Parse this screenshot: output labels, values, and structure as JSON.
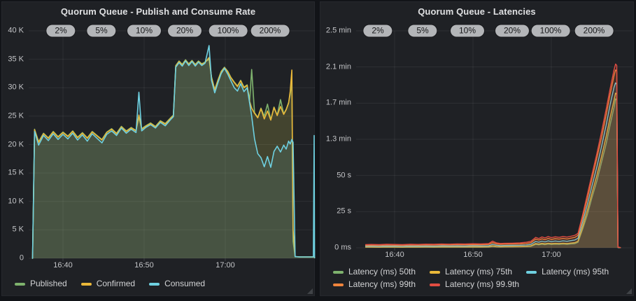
{
  "dashboard": {
    "background_color": "#121418",
    "panel_background_color": "#1f2125",
    "annotation_pill_bg": "#b3b5b8",
    "annotation_pill_text": "#17181a"
  },
  "panels": [
    {
      "title": "Quorum Queue - Publish and Consume Rate",
      "annotations": {
        "labels": [
          "2%",
          "5%",
          "10%",
          "20%",
          "100%",
          "200%"
        ]
      },
      "chart_data": {
        "type": "area",
        "title": "Quorum Queue - Publish and Consume Rate",
        "x_unit": "minutes after 16:36",
        "y_unit": "k msg/s",
        "ylim": [
          0,
          40
        ],
        "grid": true,
        "legend_position": "bottom-left",
        "x_ticks": [
          {
            "t": 4,
            "label": "16:40"
          },
          {
            "t": 14,
            "label": "16:50"
          },
          {
            "t": 24,
            "label": "17:00"
          }
        ],
        "y_ticks": [
          {
            "v": 0,
            "label": "0"
          },
          {
            "v": 5,
            "label": "5 K"
          },
          {
            "v": 10,
            "label": "10 K"
          },
          {
            "v": 15,
            "label": "15 K"
          },
          {
            "v": 20,
            "label": "20 K"
          },
          {
            "v": 25,
            "label": "25 K"
          },
          {
            "v": 30,
            "label": "30 K"
          },
          {
            "v": 35,
            "label": "35 K"
          },
          {
            "v": 40,
            "label": "40 K"
          }
        ],
        "x": [
          0.25,
          0.5,
          1.0,
          1.6,
          2.2,
          2.8,
          3.4,
          4.0,
          4.6,
          5.2,
          5.8,
          6.4,
          7.0,
          7.6,
          8.2,
          8.8,
          9.4,
          10.0,
          10.6,
          11.2,
          11.8,
          12.4,
          13.0,
          13.35,
          13.7,
          14.2,
          14.8,
          15.4,
          16.0,
          16.6,
          17.2,
          17.6,
          17.9,
          18.3,
          18.7,
          19.1,
          19.5,
          19.9,
          20.3,
          20.7,
          21.1,
          21.5,
          22.0,
          22.3,
          22.7,
          23.1,
          23.5,
          23.9,
          24.3,
          24.7,
          25.1,
          25.5,
          25.9,
          26.3,
          26.7,
          27.0,
          27.25,
          27.6,
          28.0,
          28.4,
          28.8,
          29.2,
          29.6,
          30.0,
          30.4,
          30.8,
          31.2,
          31.5,
          31.8,
          32.0,
          32.2,
          32.35,
          32.6,
          33.2,
          33.8,
          34.4,
          34.85,
          34.95,
          35.0
        ],
        "series": [
          {
            "name": "Published",
            "color": "#7EB26D",
            "values": [
              0,
              22.7,
              20.5,
              22.0,
              21.2,
              22.3,
              21.4,
              22.2,
              21.5,
              22.4,
              21.3,
              22.1,
              21.2,
              22.3,
              21.6,
              20.9,
              22.2,
              22.8,
              22.0,
              23.2,
              22.4,
              23.0,
              22.5,
              24.8,
              22.8,
              23.3,
              23.8,
              23.2,
              24.2,
              23.7,
              24.6,
              25.2,
              33.9,
              34.7,
              34.1,
              34.9,
              34.2,
              34.8,
              34.1,
              34.7,
              34.2,
              34.5,
              35.0,
              31.9,
              29.7,
              31.4,
              32.9,
              33.6,
              32.9,
              31.8,
              31.0,
              30.3,
              31.3,
              30.1,
              30.5,
              27.7,
              33.2,
              25.6,
              24.8,
              26.4,
              25.0,
              27.1,
              24.4,
              26.6,
              25.2,
              27.9,
              25.4,
              26.2,
              27.4,
              28.8,
              31.2,
              3.0,
              0.3,
              0.25,
              0.25,
              0.25,
              0.25,
              0.3,
              0.1
            ]
          },
          {
            "name": "Confirmed",
            "color": "#EAB839",
            "values": [
              0,
              22.6,
              20.4,
              21.9,
              21.1,
              22.2,
              21.3,
              22.1,
              21.4,
              22.3,
              21.2,
              22.0,
              21.1,
              22.2,
              21.5,
              20.8,
              22.1,
              22.7,
              21.9,
              23.1,
              22.3,
              22.9,
              22.4,
              25.2,
              22.7,
              23.2,
              23.7,
              23.1,
              24.1,
              23.6,
              24.5,
              25.1,
              33.8,
              34.6,
              34.0,
              34.8,
              34.1,
              34.7,
              34.0,
              34.6,
              34.1,
              34.4,
              35.3,
              31.8,
              29.6,
              31.3,
              32.8,
              33.5,
              32.8,
              31.7,
              30.9,
              30.2,
              31.2,
              30.0,
              30.4,
              27.6,
              26.4,
              25.5,
              24.7,
              26.3,
              24.5,
              25.9,
              24.3,
              26.5,
              25.1,
              26.7,
              25.3,
              26.1,
              27.3,
              29.4,
              33.1,
              5.0,
              0.3,
              0.25,
              0.25,
              0.25,
              0.25,
              0.3,
              0.1
            ]
          },
          {
            "name": "Consumed",
            "color": "#6ED0E0",
            "values": [
              0,
              22.3,
              19.9,
              21.6,
              20.7,
              21.9,
              20.9,
              21.8,
              21.0,
              22.0,
              20.8,
              21.7,
              20.6,
              21.9,
              21.1,
              20.3,
              21.8,
              22.4,
              21.6,
              22.9,
              22.0,
              22.7,
              22.1,
              29.2,
              22.4,
              23.0,
              23.5,
              22.9,
              23.9,
              23.3,
              24.3,
              24.9,
              33.6,
              34.4,
              33.8,
              34.7,
              33.9,
              34.6,
              33.8,
              34.5,
              33.9,
              34.3,
              37.4,
              31.3,
              29.1,
              30.9,
              32.5,
              33.4,
              32.4,
              31.2,
              30.0,
              29.4,
              30.7,
              29.3,
              30.0,
              27.3,
              25.0,
              21.0,
              18.4,
              17.7,
              16.1,
              17.9,
              16.0,
              18.8,
              19.7,
              18.7,
              19.9,
              19.2,
              20.6,
              20.1,
              20.9,
              20.4,
              0.3,
              0.25,
              0.25,
              0.25,
              0.25,
              21.6,
              0.1
            ]
          }
        ]
      }
    },
    {
      "title": "Quorum Queue - Latencies",
      "annotations": {
        "labels": [
          "2%",
          "5%",
          "10%",
          "20%",
          "100%",
          "200%"
        ]
      },
      "chart_data": {
        "type": "area",
        "title": "Quorum Queue - Latencies",
        "x_unit": "minutes after 16:36",
        "y_unit": "seconds",
        "ylim": [
          0,
          150
        ],
        "grid": true,
        "legend_position": "bottom-left",
        "x_ticks": [
          {
            "t": 4,
            "label": "16:40"
          },
          {
            "t": 14,
            "label": "16:50"
          },
          {
            "t": 24,
            "label": "17:00"
          }
        ],
        "y_ticks": [
          {
            "v": 0,
            "label": "0 ms"
          },
          {
            "v": 25,
            "label": "25 s"
          },
          {
            "v": 50,
            "label": "50 s"
          },
          {
            "v": 75,
            "label": "1.3 min"
          },
          {
            "v": 100,
            "label": "1.7 min"
          },
          {
            "v": 125,
            "label": "2.1 min"
          },
          {
            "v": 150,
            "label": "2.5 min"
          }
        ],
        "x": [
          0.3,
          1,
          2,
          3,
          4,
          5,
          6,
          7,
          8,
          9,
          10,
          11,
          12,
          13,
          14,
          15,
          16,
          16.5,
          17,
          17.5,
          18,
          19,
          20,
          20.8,
          21.4,
          22.0,
          22.4,
          22.8,
          23.2,
          23.6,
          24.0,
          24.5,
          25.0,
          25.5,
          26.0,
          26.5,
          27.0,
          27.4,
          28.0,
          28.6,
          29.2,
          29.8,
          30.4,
          31.0,
          31.5,
          32.0,
          32.2,
          32.35,
          32.5,
          32.8
        ],
        "series": [
          {
            "name": "Latency (ms) 50th",
            "color": "#7EB26D",
            "values": [
              0.4,
              0.4,
              0.35,
              0.45,
              0.4,
              0.35,
              0.45,
              0.4,
              0.45,
              0.4,
              0.5,
              0.45,
              0.5,
              0.45,
              0.55,
              0.5,
              0.55,
              1.0,
              0.7,
              0.6,
              0.65,
              0.7,
              0.75,
              0.85,
              1.0,
              2.4,
              2.1,
              2.5,
              2.2,
              2.6,
              2.3,
              2.5,
              2.4,
              2.6,
              2.4,
              2.7,
              2.9,
              3.8,
              13,
              23,
              35,
              46,
              59,
              72,
              85,
              97,
              103,
              102,
              0.2,
              0.1
            ]
          },
          {
            "name": "Latency (ms) 75th",
            "color": "#EAB839",
            "values": [
              0.6,
              0.6,
              0.55,
              0.65,
              0.6,
              0.55,
              0.65,
              0.6,
              0.7,
              0.65,
              0.7,
              0.65,
              0.75,
              0.7,
              0.75,
              0.7,
              0.8,
              1.4,
              1.0,
              0.85,
              0.9,
              0.95,
              1.0,
              1.1,
              1.4,
              3.0,
              2.6,
              3.1,
              2.8,
              3.2,
              2.9,
              3.1,
              3.0,
              3.2,
              3.0,
              3.3,
              3.6,
              4.6,
              15,
              26,
              38,
              50,
              63,
              77,
              90,
              102,
              107,
              106,
              0.25,
              0.1
            ]
          },
          {
            "name": "Latency (ms) 95th",
            "color": "#6ED0E0",
            "values": [
              1.1,
              1.1,
              1.0,
              1.2,
              1.1,
              1.0,
              1.2,
              1.1,
              1.2,
              1.1,
              1.3,
              1.2,
              1.3,
              1.2,
              1.4,
              1.3,
              1.4,
              2.4,
              1.8,
              1.5,
              1.6,
              1.7,
              1.8,
              2.0,
              2.4,
              4.4,
              3.9,
              4.6,
              4.1,
              4.8,
              4.3,
              4.7,
              4.4,
              4.8,
              4.5,
              5.0,
              5.4,
              6.6,
              18,
              30,
              43,
              56,
              70,
              85,
              99,
              111,
              114,
              113,
              0.3,
              0.1
            ]
          },
          {
            "name": "Latency (ms) 99th",
            "color": "#EF843C",
            "values": [
              1.7,
              1.8,
              1.7,
              1.9,
              1.8,
              1.7,
              1.9,
              1.8,
              2.0,
              1.9,
              2.1,
              2.0,
              2.2,
              2.1,
              2.2,
              2.1,
              2.3,
              3.6,
              2.7,
              2.4,
              2.5,
              2.6,
              2.7,
              3.0,
              3.6,
              6.0,
              5.3,
              6.2,
              5.6,
              6.5,
              5.8,
              6.3,
              6.0,
              6.5,
              6.1,
              6.7,
              7.2,
              8.6,
              21,
              34,
              48,
              62,
              76,
              92,
              106,
              119,
              123,
              122,
              0.4,
              0.15
            ]
          },
          {
            "name": "Latency (ms) 99.9th",
            "color": "#E24D42",
            "values": [
              2.2,
              2.3,
              2.2,
              2.4,
              2.3,
              2.2,
              2.4,
              2.3,
              2.5,
              2.4,
              2.6,
              2.5,
              2.7,
              2.6,
              2.8,
              2.7,
              2.9,
              4.6,
              3.4,
              3.0,
              3.1,
              3.2,
              3.4,
              3.8,
              4.5,
              7.2,
              6.4,
              7.5,
              6.8,
              7.8,
              7.0,
              7.6,
              7.2,
              7.8,
              7.4,
              8.0,
              8.6,
              10.0,
              23,
              37,
              51,
              65,
              80,
              96,
              110,
              123,
              127,
              126,
              0.5,
              0.2
            ]
          }
        ]
      }
    }
  ]
}
